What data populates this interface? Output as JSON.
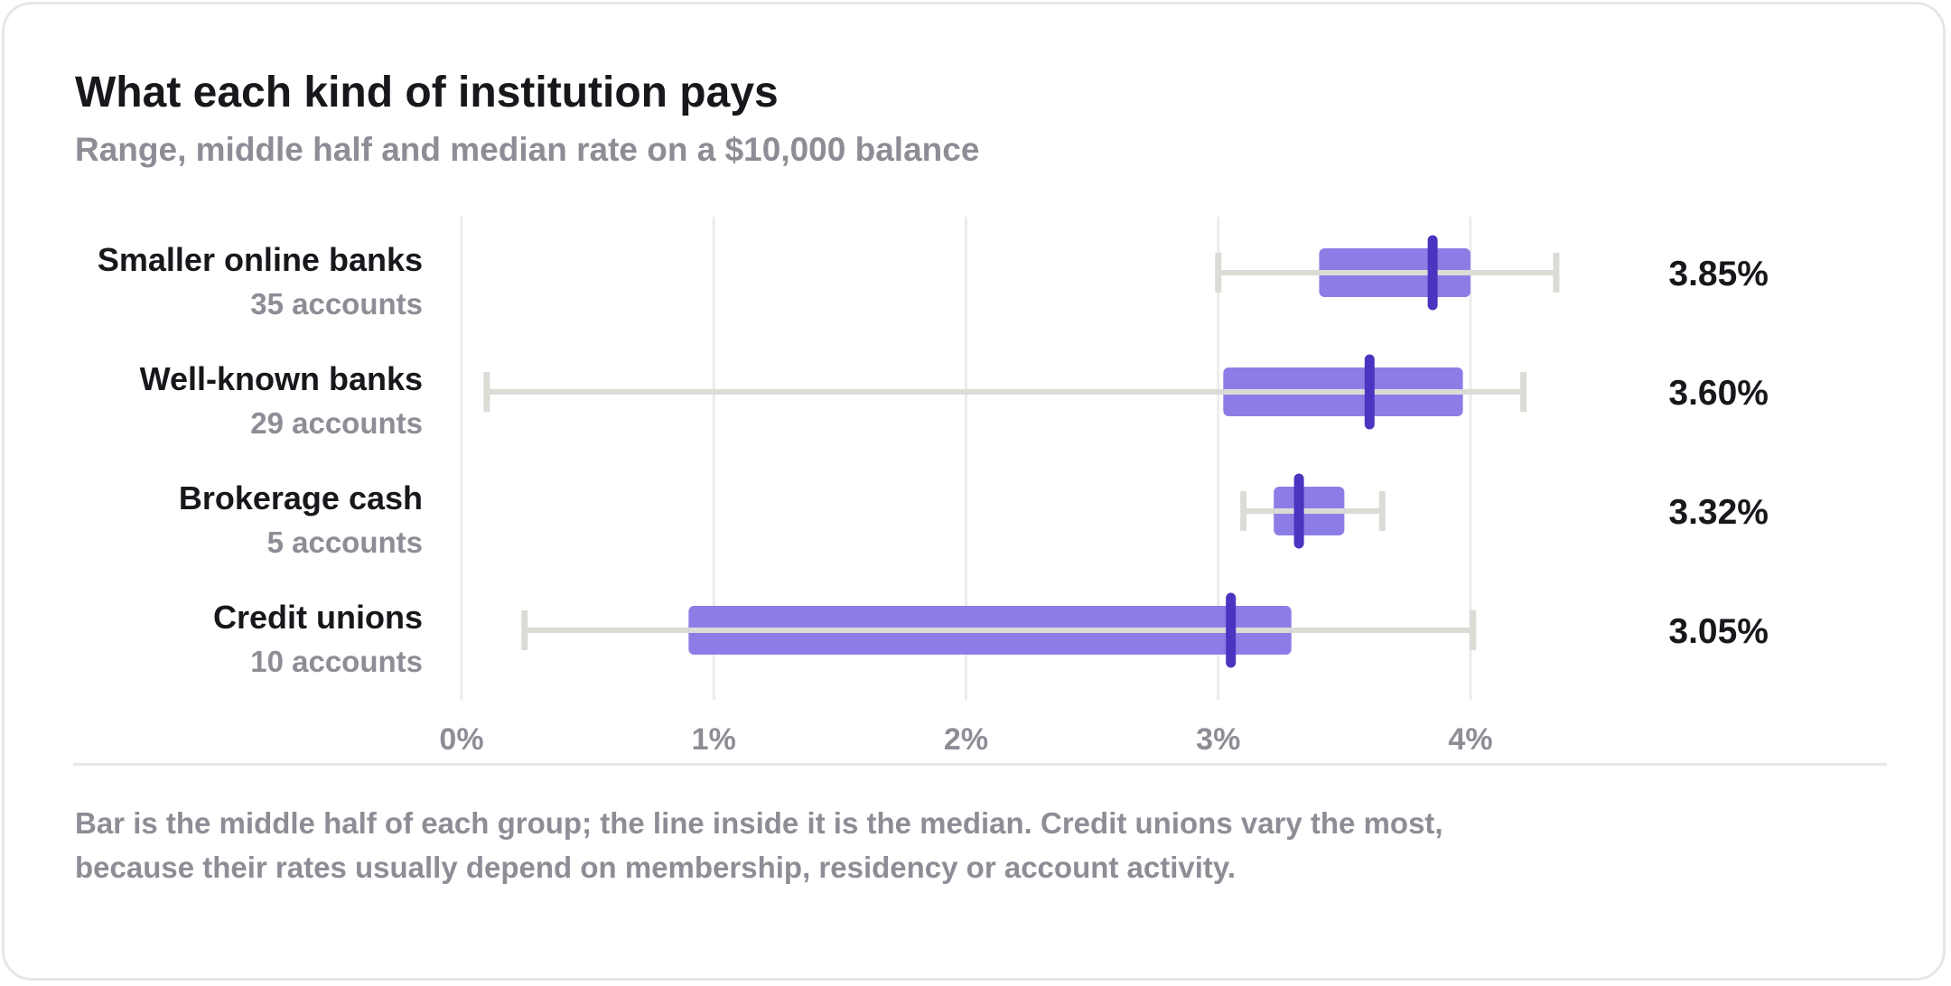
{
  "title": "What each kind of institution pays",
  "subtitle": "Range, middle half and median rate on a $10,000 balance",
  "footnote_line1": "Bar is the middle half of each group; the line inside it is the median. Credit unions vary the most,",
  "footnote_line2": "because their rates usually depend on membership, residency or account activity.",
  "colors": {
    "iqr_bar": "#8c7de6",
    "median_line": "#4a35c0",
    "range_whisker": "#dcdcd6",
    "gridline": "#ececec",
    "text": "#17171c",
    "muted_text": "#8e8d96"
  },
  "chart_data": {
    "type": "box",
    "orientation": "horizontal",
    "x_unit": "%",
    "xlim": [
      0,
      4
    ],
    "x_ticks": [
      {
        "value": 0,
        "label": "0%"
      },
      {
        "value": 1,
        "label": "1%"
      },
      {
        "value": 2,
        "label": "2%"
      },
      {
        "value": 3,
        "label": "3%"
      },
      {
        "value": 4,
        "label": "4%"
      }
    ],
    "grid": true,
    "rows": [
      {
        "category": "Smaller online banks",
        "count_label": "35 accounts",
        "min": 3.0,
        "q1": 3.4,
        "median": 3.85,
        "q3": 4.0,
        "max": 4.34,
        "median_label": "3.85%"
      },
      {
        "category": "Well-known banks",
        "count_label": "29 accounts",
        "min": 0.1,
        "q1": 3.02,
        "median": 3.6,
        "q3": 3.97,
        "max": 4.21,
        "median_label": "3.60%"
      },
      {
        "category": "Brokerage cash",
        "count_label": "5 accounts",
        "min": 3.1,
        "q1": 3.22,
        "median": 3.32,
        "q3": 3.5,
        "max": 3.65,
        "median_label": "3.32%"
      },
      {
        "category": "Credit unions",
        "count_label": "10 accounts",
        "min": 0.25,
        "q1": 0.9,
        "median": 3.05,
        "q3": 3.29,
        "max": 4.01,
        "median_label": "3.05%"
      }
    ]
  }
}
